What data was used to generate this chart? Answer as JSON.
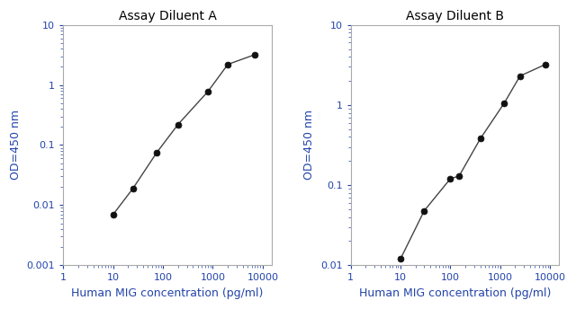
{
  "panel_A": {
    "title": "Assay Diluent A",
    "x": [
      10,
      25,
      75,
      200,
      800,
      2000,
      7000
    ],
    "y": [
      0.007,
      0.019,
      0.075,
      0.22,
      0.78,
      2.2,
      3.2
    ],
    "xlim": [
      1,
      15000
    ],
    "ylim": [
      0.001,
      10
    ],
    "xlabel": "Human MIG concentration (pg/ml)",
    "ylabel": "OD=450 nm",
    "yticks": [
      0.001,
      0.01,
      0.1,
      1,
      10
    ],
    "ytick_labels": [
      "0.001",
      "0.01",
      "0.1",
      "1",
      "10"
    ],
    "xticks": [
      1,
      10,
      100,
      1000,
      10000
    ],
    "xtick_labels": [
      "1",
      "10",
      "100",
      "1000",
      "10000"
    ]
  },
  "panel_B": {
    "title": "Assay Diluent B",
    "x": [
      10,
      30,
      100,
      150,
      400,
      1200,
      2500,
      8000
    ],
    "y": [
      0.012,
      0.048,
      0.12,
      0.13,
      0.38,
      1.05,
      2.3,
      3.2
    ],
    "xlim": [
      1,
      15000
    ],
    "ylim": [
      0.01,
      10
    ],
    "xlabel": "Human MIG concentration (pg/ml)",
    "ylabel": "OD=450 nm",
    "yticks": [
      0.01,
      0.1,
      1,
      10
    ],
    "ytick_labels": [
      "0.01",
      "0.1",
      "1",
      "10"
    ],
    "xticks": [
      1,
      10,
      100,
      1000,
      10000
    ],
    "xtick_labels": [
      "1",
      "10",
      "100",
      "1000",
      "10000"
    ]
  },
  "line_color": "#444444",
  "marker_color": "#111111",
  "bg_color": "#ffffff",
  "title_fontsize": 10,
  "label_fontsize": 9,
  "ylabel_color": "#2244aa",
  "xlabel_color": "#2244aa",
  "tick_fontsize": 8,
  "tick_color": "#2244aa",
  "spine_color": "#aaaaaa"
}
